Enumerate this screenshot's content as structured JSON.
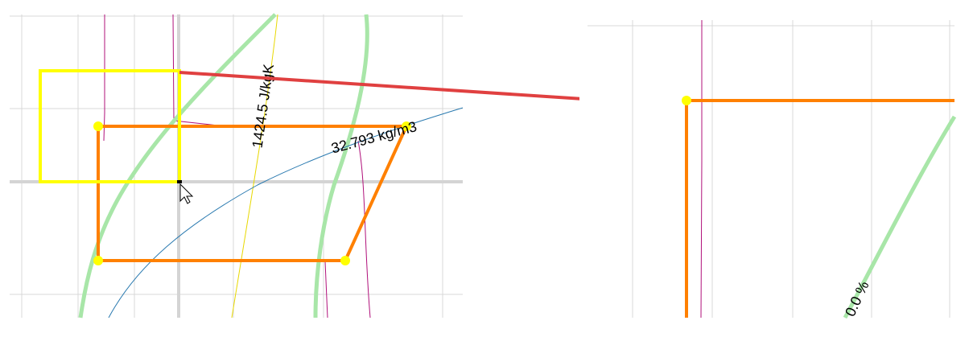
{
  "main_view": {
    "labels": {
      "entropy": "1424.5 J/kgK",
      "density": "32.793 kg/m3"
    }
  },
  "zoom_view": {
    "labels": {
      "quality": "0.0 %"
    }
  }
}
